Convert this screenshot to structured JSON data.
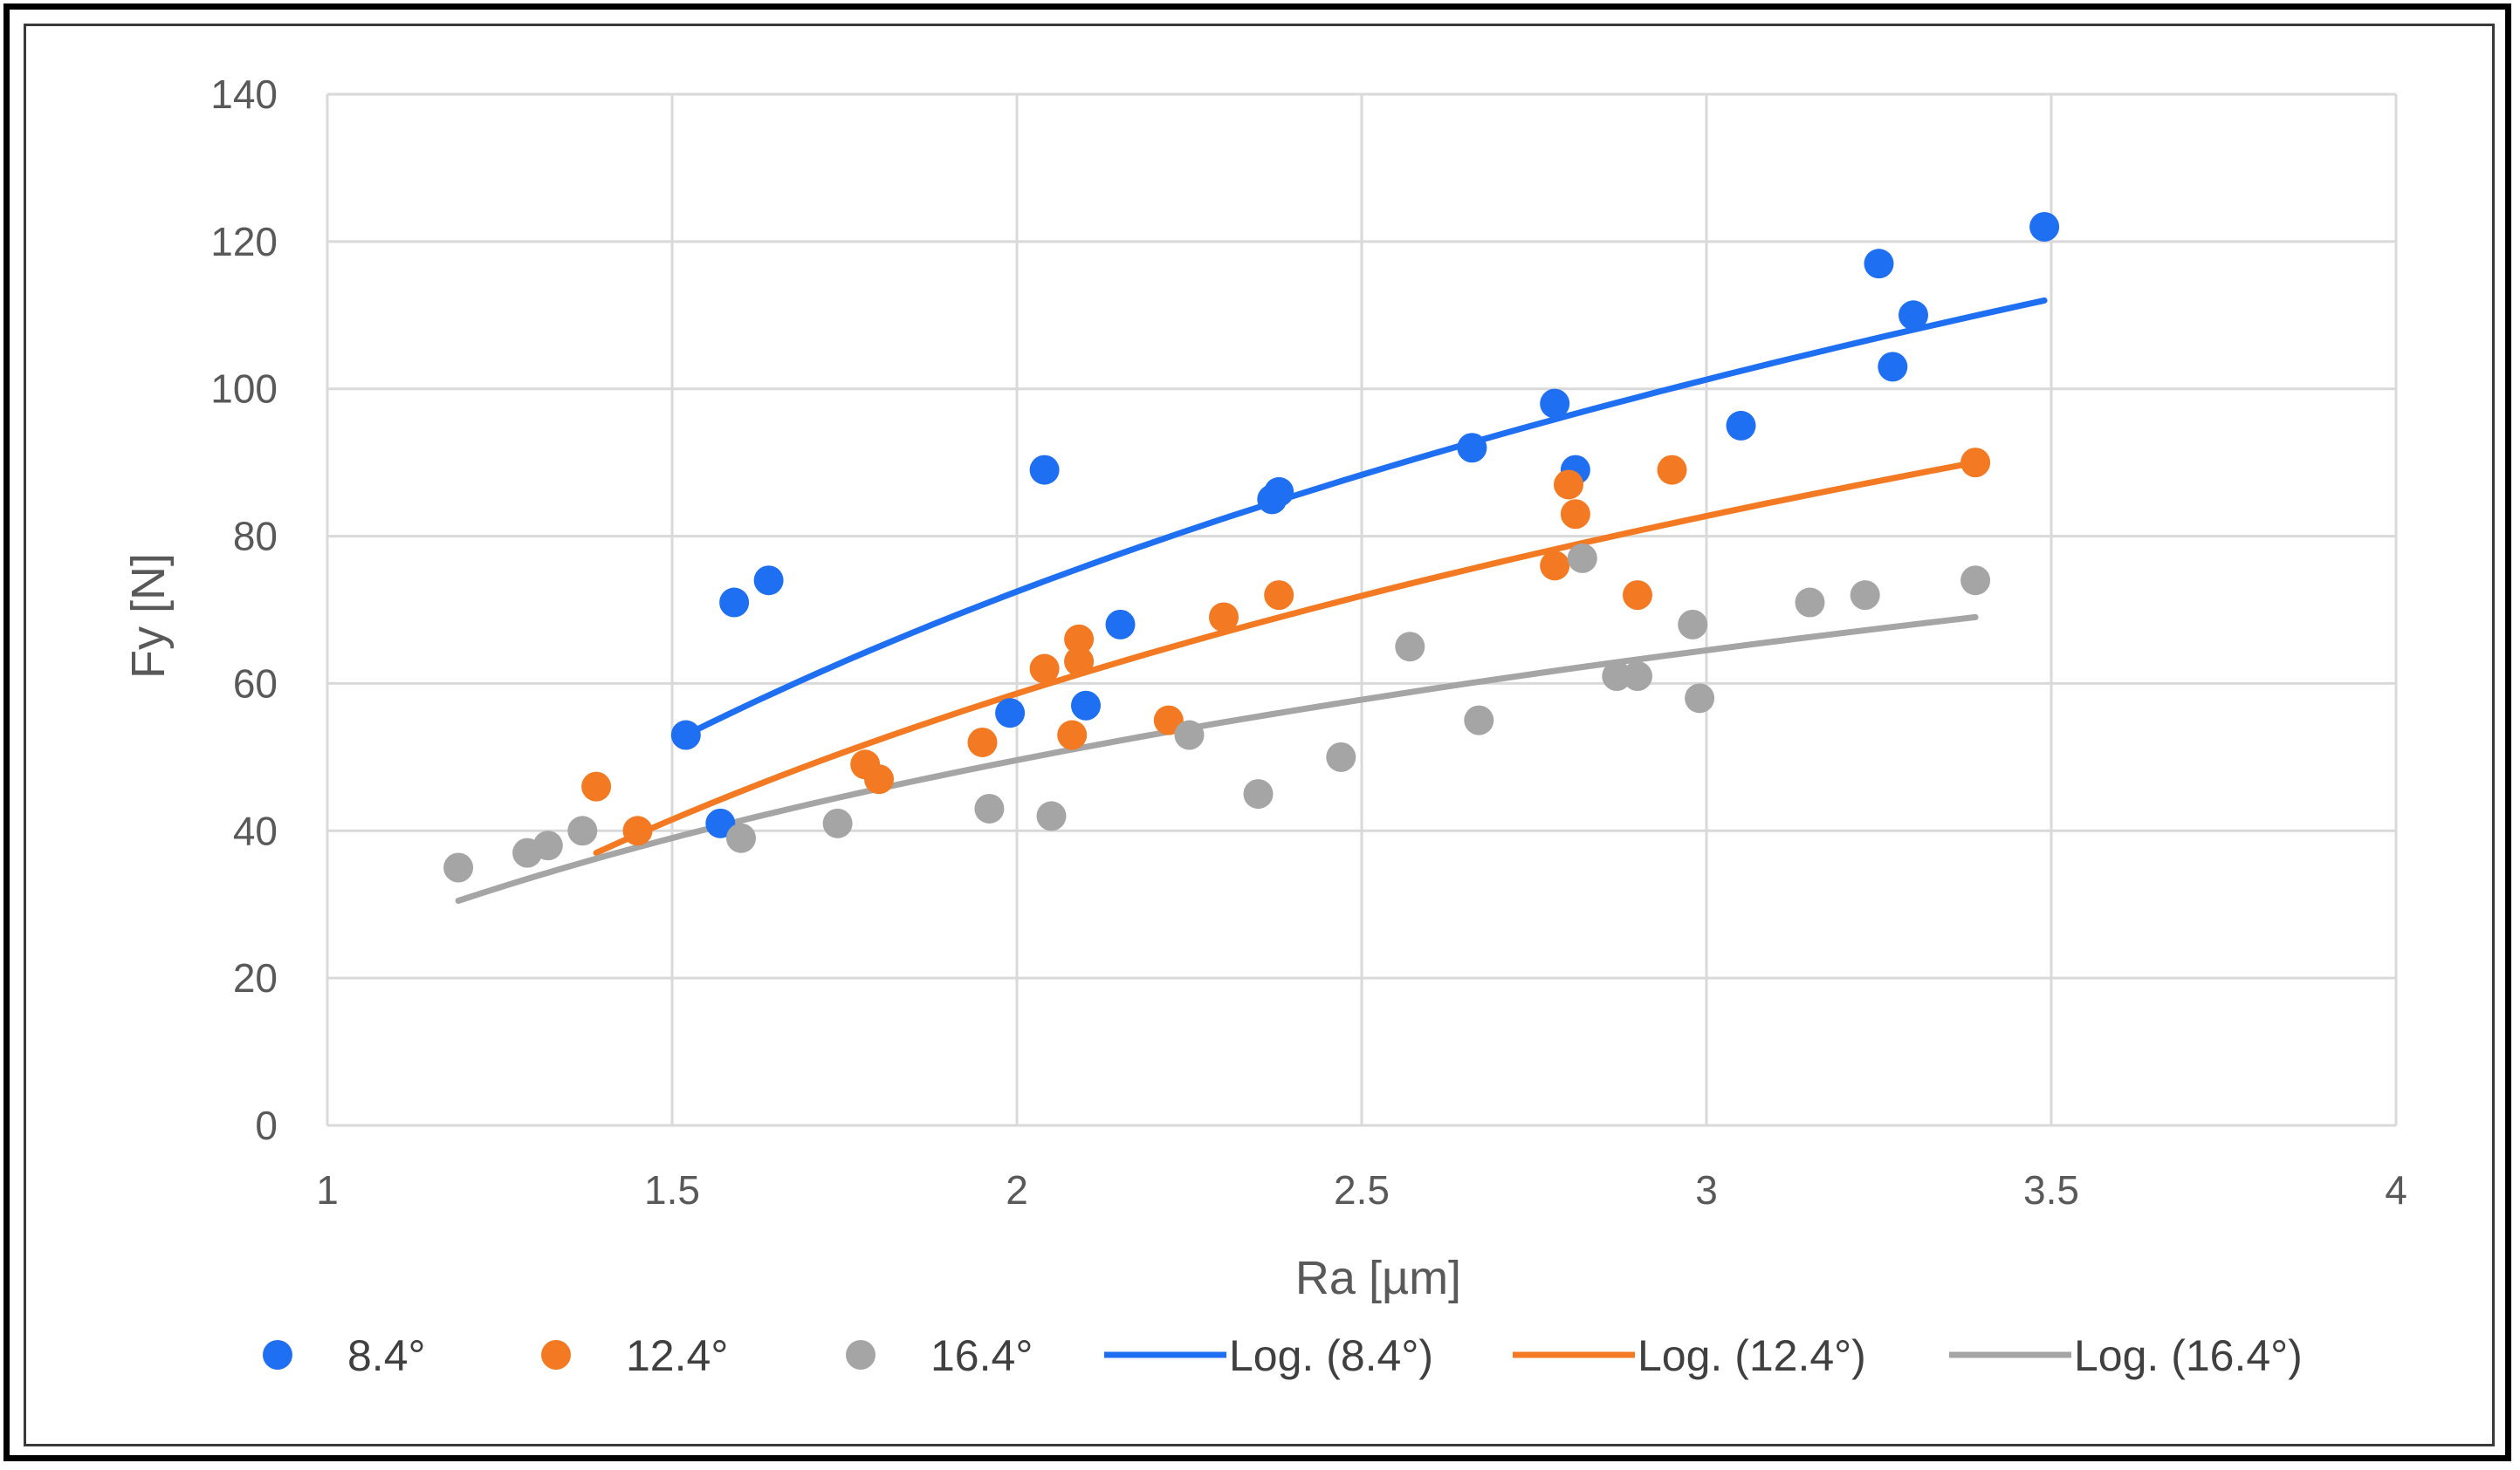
{
  "chart_data": {
    "type": "scatter",
    "title": "",
    "xlabel": "Ra [µm]",
    "ylabel": "Fy [N]",
    "xlim": [
      1,
      4
    ],
    "ylim": [
      0,
      140
    ],
    "x_ticks": [
      1,
      1.5,
      2,
      2.5,
      3,
      3.5,
      4
    ],
    "y_ticks": [
      0,
      20,
      40,
      60,
      80,
      100,
      120,
      140
    ],
    "x_tick_labels": [
      "1",
      "1.5",
      "2",
      "2.5",
      "3",
      "3.5",
      "4"
    ],
    "y_tick_labels": [
      "0",
      "20",
      "40",
      "60",
      "80",
      "100",
      "120",
      "140"
    ],
    "grid": true,
    "legend_position": "bottom",
    "series": [
      {
        "name": "8.4°",
        "color": "#1f6ff2",
        "points": [
          [
            1.52,
            53
          ],
          [
            1.57,
            41
          ],
          [
            1.59,
            71
          ],
          [
            1.64,
            74
          ],
          [
            1.99,
            56
          ],
          [
            2.04,
            89
          ],
          [
            2.1,
            57
          ],
          [
            2.15,
            68
          ],
          [
            2.37,
            85
          ],
          [
            2.38,
            86
          ],
          [
            2.66,
            92
          ],
          [
            2.78,
            98
          ],
          [
            2.81,
            89
          ],
          [
            3.05,
            95
          ],
          [
            3.25,
            117
          ],
          [
            3.27,
            103
          ],
          [
            3.3,
            110
          ],
          [
            3.49,
            122
          ]
        ]
      },
      {
        "name": "12.4°",
        "color": "#f37a22",
        "points": [
          [
            1.39,
            46
          ],
          [
            1.45,
            40
          ],
          [
            1.78,
            49
          ],
          [
            1.8,
            47
          ],
          [
            1.95,
            52
          ],
          [
            2.04,
            62
          ],
          [
            2.08,
            53
          ],
          [
            2.09,
            66
          ],
          [
            2.09,
            63
          ],
          [
            2.22,
            55
          ],
          [
            2.3,
            69
          ],
          [
            2.38,
            72
          ],
          [
            2.78,
            76
          ],
          [
            2.8,
            87
          ],
          [
            2.81,
            83
          ],
          [
            2.9,
            72
          ],
          [
            2.95,
            89
          ],
          [
            3.39,
            90
          ]
        ]
      },
      {
        "name": "16.4°",
        "color": "#a5a5a5",
        "points": [
          [
            1.19,
            35
          ],
          [
            1.29,
            37
          ],
          [
            1.32,
            38
          ],
          [
            1.37,
            40
          ],
          [
            1.6,
            39
          ],
          [
            1.74,
            41
          ],
          [
            1.96,
            43
          ],
          [
            2.05,
            42
          ],
          [
            2.25,
            53
          ],
          [
            2.35,
            45
          ],
          [
            2.47,
            50
          ],
          [
            2.57,
            65
          ],
          [
            2.67,
            55
          ],
          [
            2.82,
            77
          ],
          [
            2.87,
            61
          ],
          [
            2.9,
            61
          ],
          [
            2.98,
            68
          ],
          [
            2.99,
            58
          ],
          [
            3.15,
            71
          ],
          [
            3.23,
            72
          ],
          [
            3.39,
            74
          ]
        ]
      }
    ],
    "trendlines": [
      {
        "name": "Log. (8.4°)",
        "color": "#1f6ff2",
        "type": "logarithmic",
        "x_range": [
          1.52,
          3.49
        ],
        "y_at_start": 53,
        "y_at_end": 112
      },
      {
        "name": "Log. (12.4°)",
        "color": "#f37a22",
        "type": "logarithmic",
        "x_range": [
          1.39,
          3.39
        ],
        "y_at_start": 37,
        "y_at_end": 90
      },
      {
        "name": "Log. (16.4°)",
        "color": "#a5a5a5",
        "type": "logarithmic",
        "x_range": [
          1.19,
          3.39
        ],
        "y_at_start": 30.5,
        "y_at_end": 69
      }
    ]
  }
}
